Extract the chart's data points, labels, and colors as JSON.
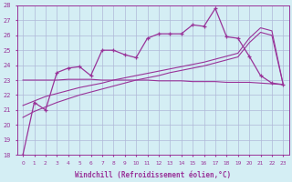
{
  "xlabel": "Windchill (Refroidissement éolien,°C)",
  "x_values": [
    0,
    1,
    2,
    3,
    4,
    5,
    6,
    7,
    8,
    9,
    10,
    11,
    12,
    13,
    14,
    15,
    16,
    17,
    18,
    19,
    20,
    21,
    22,
    23
  ],
  "main_line": [
    18.0,
    21.5,
    21.0,
    23.5,
    23.8,
    23.9,
    23.3,
    25.0,
    25.0,
    24.7,
    24.5,
    25.8,
    26.1,
    26.1,
    26.1,
    26.7,
    26.6,
    27.8,
    25.9,
    25.8,
    24.6,
    23.3,
    22.8,
    22.7
  ],
  "trend_line1": [
    21.3,
    21.6,
    21.9,
    22.1,
    22.3,
    22.5,
    22.65,
    22.8,
    23.0,
    23.15,
    23.3,
    23.45,
    23.6,
    23.75,
    23.9,
    24.05,
    24.2,
    24.4,
    24.6,
    24.8,
    25.8,
    26.5,
    26.3,
    22.7
  ],
  "trend_line2": [
    20.5,
    20.9,
    21.2,
    21.5,
    21.75,
    22.0,
    22.2,
    22.4,
    22.6,
    22.8,
    23.0,
    23.15,
    23.3,
    23.5,
    23.65,
    23.8,
    23.95,
    24.15,
    24.35,
    24.55,
    25.5,
    26.2,
    26.0,
    22.7
  ],
  "flat_line": [
    23.0,
    23.0,
    23.0,
    23.0,
    23.05,
    23.05,
    23.05,
    23.0,
    23.0,
    23.0,
    23.0,
    23.0,
    22.95,
    22.95,
    22.95,
    22.9,
    22.9,
    22.9,
    22.85,
    22.85,
    22.85,
    22.8,
    22.75,
    22.7
  ],
  "line_color": "#993399",
  "bg_color": "#d4eef4",
  "grid_color": "#b0b8d8",
  "ylim": [
    18,
    28
  ],
  "yticks": [
    18,
    19,
    20,
    21,
    22,
    23,
    24,
    25,
    26,
    27,
    28
  ],
  "xlim_min": -0.5,
  "xlim_max": 23.5
}
